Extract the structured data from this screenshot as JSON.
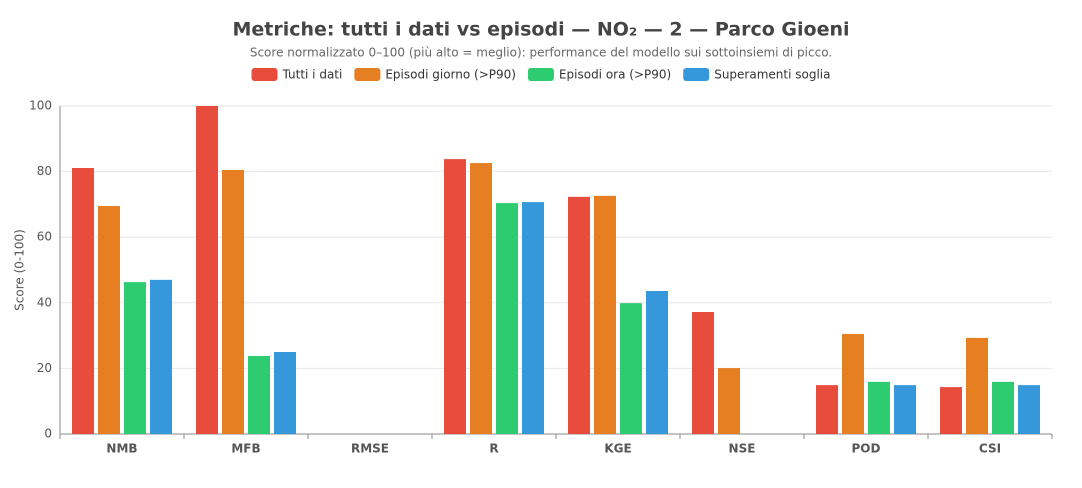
{
  "chart_data": {
    "type": "bar",
    "title": "Metriche: tutti i dati vs episodi — NO₂ — 2 — Parco Gioeni",
    "subtitle": "Score normalizzato 0–100 (più alto = meglio): performance del modello sui sottoinsiemi di picco.",
    "y_label": "Score (0-100)",
    "categories": [
      "NMB",
      "MFB",
      "RMSE",
      "R",
      "KGE",
      "NSE",
      "POD",
      "CSI"
    ],
    "series": [
      {
        "name": "Tutti i dati",
        "color": "#e74c3c",
        "values": [
          81.1,
          100,
          null,
          83.8,
          72.3,
          37.2,
          14.9,
          14.3
        ]
      },
      {
        "name": "Episodi giorno (>P90)",
        "color": "#e67e22",
        "values": [
          69.5,
          80.5,
          null,
          82.6,
          72.6,
          20.1,
          30.5,
          29.3
        ]
      },
      {
        "name": "Episodi ora (>P90)",
        "color": "#2ecc71",
        "values": [
          46.3,
          23.8,
          null,
          70.4,
          39.9,
          null,
          15.9,
          15.9
        ]
      },
      {
        "name": "Superamenti soglia",
        "color": "#3498db",
        "values": [
          47.0,
          25.0,
          null,
          70.7,
          43.6,
          null,
          14.9,
          14.9
        ]
      }
    ],
    "ylim": [
      0,
      100
    ],
    "yticks": [
      0,
      20,
      40,
      60,
      80,
      100
    ],
    "grid": true
  }
}
